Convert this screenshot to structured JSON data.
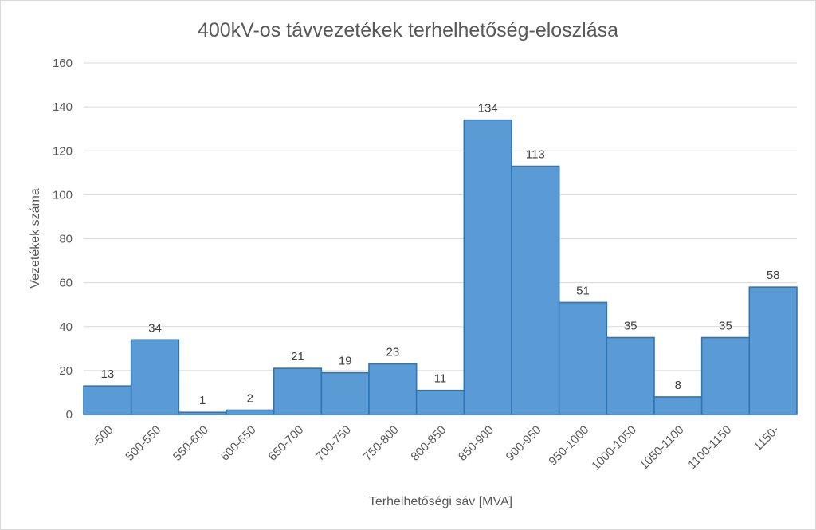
{
  "chart_data": {
    "type": "bar",
    "title": "400kV-os távvezetékek terhelhetőség-eloszlása",
    "xlabel": "Terhelhetőségi sáv [MVA]",
    "ylabel": "Vezetékek száma",
    "categories": [
      "-500",
      "500-550",
      "550-600",
      "600-650",
      "650-700",
      "700-750",
      "750-800",
      "800-850",
      "850-900",
      "900-950",
      "950-1000",
      "1000-1050",
      "1050-1100",
      "1100-1150",
      "1150-"
    ],
    "values": [
      13,
      34,
      1,
      2,
      21,
      19,
      23,
      11,
      134,
      113,
      51,
      35,
      8,
      35,
      58
    ],
    "ylim": [
      0,
      160
    ],
    "yticks": [
      0,
      20,
      40,
      60,
      80,
      100,
      120,
      140,
      160
    ],
    "grid": true,
    "legend": "none",
    "bar_fill": "#5b9bd5",
    "bar_stroke": "#2e75b6",
    "grid_color": "#d9d9d9"
  }
}
